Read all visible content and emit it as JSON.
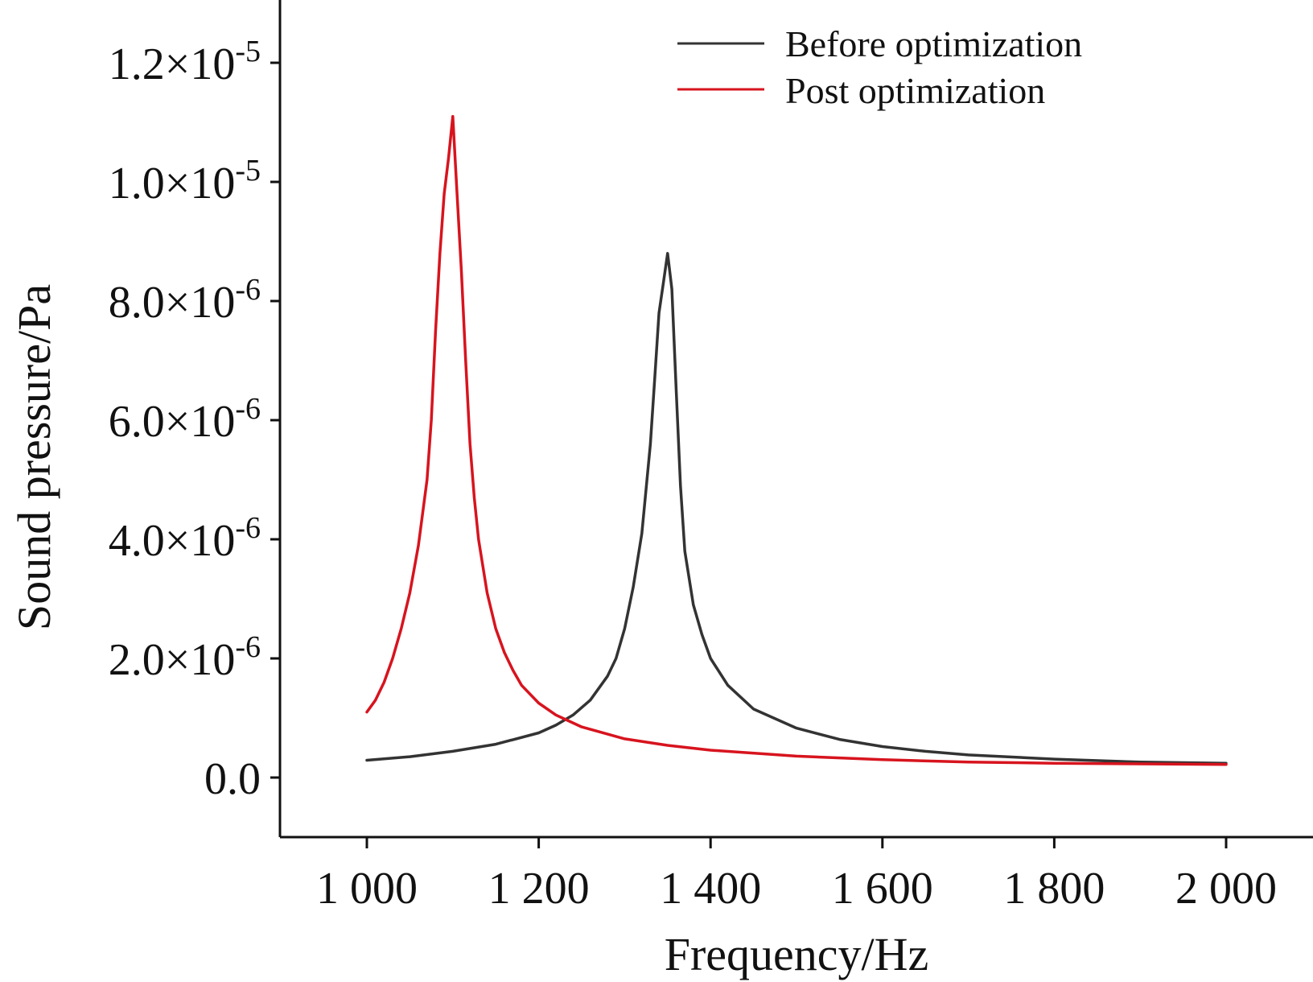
{
  "chart_data": {
    "type": "line",
    "title": "",
    "xlabel": "Frequency/Hz",
    "ylabel": "Sound pressure/Pa",
    "xlim": [
      900,
      2100
    ],
    "ylim": [
      -1e-06,
      1.3e-05
    ],
    "grid": false,
    "legend_position": "top-right",
    "x_ticks": [
      {
        "value": 1000,
        "label": "1 000"
      },
      {
        "value": 1200,
        "label": "1 200"
      },
      {
        "value": 1400,
        "label": "1 400"
      },
      {
        "value": 1600,
        "label": "1 600"
      },
      {
        "value": 1800,
        "label": "1 800"
      },
      {
        "value": 2000,
        "label": "2 000"
      }
    ],
    "y_ticks": [
      {
        "value": 0,
        "mantissa": "0.0",
        "exponent": ""
      },
      {
        "value": 2e-06,
        "mantissa": "2.0×10",
        "exponent": "-6"
      },
      {
        "value": 4e-06,
        "mantissa": "4.0×10",
        "exponent": "-6"
      },
      {
        "value": 6e-06,
        "mantissa": "6.0×10",
        "exponent": "-6"
      },
      {
        "value": 8e-06,
        "mantissa": "8.0×10",
        "exponent": "-6"
      },
      {
        "value": 1e-05,
        "mantissa": "1.0×10",
        "exponent": "-5"
      },
      {
        "value": 1.2e-05,
        "mantissa": "1.2×10",
        "exponent": "-5"
      }
    ],
    "series": [
      {
        "name": "Before optimization",
        "color": "#333333",
        "x": [
          1000,
          1050,
          1100,
          1150,
          1200,
          1220,
          1240,
          1260,
          1280,
          1290,
          1300,
          1310,
          1320,
          1330,
          1335,
          1340,
          1345,
          1350,
          1355,
          1360,
          1365,
          1370,
          1380,
          1390,
          1400,
          1420,
          1450,
          1500,
          1550,
          1600,
          1650,
          1700,
          1800,
          1900,
          2000
        ],
        "values": [
          2.9e-07,
          3.5e-07,
          4.4e-07,
          5.6e-07,
          7.5e-07,
          8.8e-07,
          1.05e-06,
          1.3e-06,
          1.7e-06,
          2e-06,
          2.5e-06,
          3.2e-06,
          4.1e-06,
          5.6e-06,
          6.7e-06,
          7.8e-06,
          8.3e-06,
          8.8e-06,
          8.2e-06,
          6.5e-06,
          4.9e-06,
          3.8e-06,
          2.9e-06,
          2.4e-06,
          2e-06,
          1.55e-06,
          1.15e-06,
          8.3e-07,
          6.4e-07,
          5.2e-07,
          4.4e-07,
          3.8e-07,
          3.1e-07,
          2.6e-07,
          2.4e-07
        ]
      },
      {
        "name": "Post optimization",
        "color": "#d7141e",
        "x": [
          1000,
          1010,
          1020,
          1030,
          1040,
          1050,
          1060,
          1070,
          1075,
          1080,
          1085,
          1090,
          1095,
          1100,
          1105,
          1110,
          1115,
          1120,
          1125,
          1130,
          1140,
          1150,
          1160,
          1170,
          1180,
          1200,
          1220,
          1250,
          1300,
          1350,
          1400,
          1500,
          1600,
          1700,
          1800,
          1900,
          2000
        ],
        "values": [
          1.1e-06,
          1.3e-06,
          1.6e-06,
          2e-06,
          2.5e-06,
          3.1e-06,
          3.9e-06,
          5e-06,
          6e-06,
          7.5e-06,
          8.8e-06,
          9.8e-06,
          1.04e-05,
          1.11e-05,
          9.8e-06,
          8.5e-06,
          7e-06,
          5.6e-06,
          4.7e-06,
          4e-06,
          3.1e-06,
          2.5e-06,
          2.1e-06,
          1.8e-06,
          1.55e-06,
          1.25e-06,
          1.05e-06,
          8.5e-07,
          6.5e-07,
          5.4e-07,
          4.6e-07,
          3.6e-07,
          3e-07,
          2.6e-07,
          2.4e-07,
          2.3e-07,
          2.2e-07
        ]
      }
    ]
  }
}
